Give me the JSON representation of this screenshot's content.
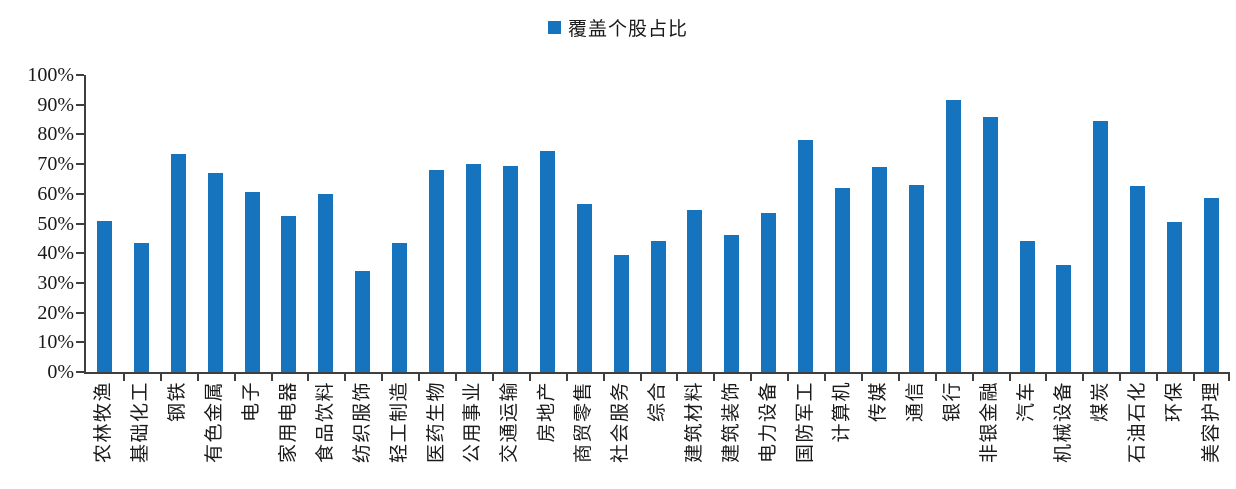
{
  "chart_data": {
    "type": "bar",
    "title": "",
    "legend_label": "覆盖个股占比",
    "legend_position": "top-center",
    "legend_marker": "square-icon",
    "categories": [
      "农林牧渔",
      "基础化工",
      "钢铁",
      "有色金属",
      "电子",
      "家用电器",
      "食品饮料",
      "纺织服饰",
      "轻工制造",
      "医药生物",
      "公用事业",
      "交通运输",
      "房地产",
      "商贸零售",
      "社会服务",
      "综合",
      "建筑材料",
      "建筑装饰",
      "电力设备",
      "国防军工",
      "计算机",
      "传媒",
      "通信",
      "银行",
      "非银金融",
      "汽车",
      "机械设备",
      "煤炭",
      "石油石化",
      "环保",
      "美容护理"
    ],
    "values": [
      51,
      43.5,
      73.5,
      67,
      60.5,
      52.5,
      60,
      34,
      43.5,
      68,
      70,
      69.5,
      74.5,
      56.5,
      39.5,
      44,
      54.5,
      46,
      53.5,
      78,
      62,
      69,
      63,
      91.5,
      86,
      44,
      36,
      84.5,
      62.5,
      50.5,
      58.5
    ],
    "value_unit": "%",
    "xlabel": "",
    "ylabel": "",
    "ylim": [
      0,
      100
    ],
    "yticks": [
      0,
      10,
      20,
      30,
      40,
      50,
      60,
      70,
      80,
      90,
      100
    ],
    "ytick_labels": [
      "0%",
      "10%",
      "20%",
      "30%",
      "40%",
      "50%",
      "60%",
      "70%",
      "80%",
      "90%",
      "100%"
    ],
    "grid": false,
    "bar_color": "#1673be",
    "axis_color": "#3f3f3f",
    "text_color": "#1a1a1a"
  }
}
